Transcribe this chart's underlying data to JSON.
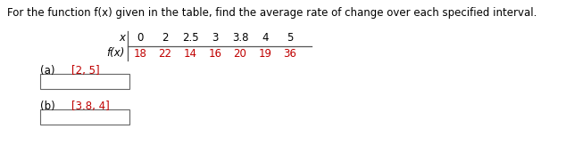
{
  "title": "For the function f(x) given in the table, find the average rate of change over each specified interval.",
  "title_fontsize": 8.5,
  "bg_color": "#ffffff",
  "table_x_label": "x",
  "table_fx_label": "f(x)",
  "x_values": [
    "0",
    "2",
    "2.5",
    "3",
    "3.8",
    "4",
    "5"
  ],
  "fx_values": [
    "18",
    "22",
    "14",
    "16",
    "20",
    "19",
    "36"
  ],
  "x_color": "#000000",
  "fx_colors": [
    "#c00000",
    "#c00000",
    "#c00000",
    "#c00000",
    "#c00000",
    "#c00000",
    "#c00000"
  ],
  "part_a_label": "(a)",
  "part_a_interval": "[2, 5]",
  "part_b_label": "(b)",
  "part_b_interval": "[3.8, 4]",
  "label_color": "#000000",
  "interval_color": "#c00000",
  "line_color": "#555555",
  "box_color": "#666666",
  "table_font": 8.5,
  "parts_font": 8.5
}
